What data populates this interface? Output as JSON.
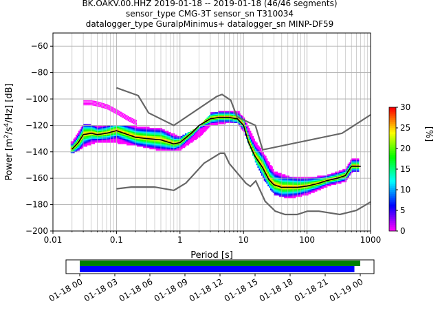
{
  "title": {
    "line1": "BK.OAKV.00.HHZ   2019-01-18 -- 2019-01-18  (46/46 segments)",
    "line2": "sensor_type CMG-3T sensor_sn T310034",
    "line3": "datalogger_type GuralpMinimus+ datalogger_sn MINP-DF59"
  },
  "chart_data": [
    {
      "type": "heatmap",
      "title": "BK.OAKV.00.HHZ   2019-01-18 -- 2019-01-18  (46/46 segments)",
      "xlabel": "Period [s]",
      "ylabel": "Power [m²/s⁴/Hz] [dB]",
      "xscale": "log",
      "xlim": [
        0.01,
        1000
      ],
      "ylim": [
        -200,
        -50
      ],
      "xticks": [
        0.01,
        0.1,
        1,
        10,
        100,
        1000
      ],
      "xtick_labels": [
        "0.01",
        "0.1",
        "1",
        "10",
        "100",
        "1000"
      ],
      "yticks": [
        -200,
        -180,
        -160,
        -140,
        -120,
        -100,
        -80,
        -60
      ],
      "ytick_labels": [
        "−200",
        "−180",
        "−160",
        "−140",
        "−120",
        "−100",
        "−80",
        "−60"
      ],
      "grid": true,
      "colorbar": {
        "label": "[%]",
        "range": [
          0,
          30
        ],
        "ticks": [
          0,
          5,
          10,
          15,
          20,
          25,
          30
        ],
        "colors": [
          "#ffffff",
          "#ff00ff",
          "#0000ff",
          "#00ffff",
          "#00ff00",
          "#ffff00",
          "#ff0000"
        ]
      },
      "series": [
        {
          "kind": "mode-line",
          "color": "#000000",
          "x": [
            0.02,
            0.025,
            0.03,
            0.04,
            0.05,
            0.07,
            0.1,
            0.15,
            0.2,
            0.3,
            0.5,
            0.8,
            1,
            1.5,
            2,
            3,
            4,
            5,
            6,
            8,
            10,
            12,
            15,
            20,
            25,
            30,
            40,
            50,
            70,
            100,
            150,
            200,
            300,
            400,
            500,
            700
          ],
          "y": [
            -138,
            -133,
            -127,
            -126,
            -127,
            -126,
            -124,
            -127,
            -129,
            -130,
            -131,
            -134,
            -133,
            -126,
            -120,
            -115,
            -114,
            -114,
            -114,
            -115,
            -120,
            -133,
            -143,
            -152,
            -161,
            -165,
            -167,
            -167,
            -167,
            -166,
            -164,
            -162,
            -160,
            -158,
            -151,
            -151
          ]
        },
        {
          "kind": "new-high-noise-model",
          "color": "#666666",
          "x": [
            0.1,
            0.22,
            0.32,
            0.8,
            3.8,
            4.6,
            6.3,
            7.9,
            15.4,
            20,
            354.8,
            1000
          ],
          "y": [
            -91.5,
            -97.4,
            -110.5,
            -120,
            -98,
            -96.5,
            -101,
            -113.5,
            -120,
            -138.5,
            -126,
            -112
          ]
        },
        {
          "kind": "new-low-noise-model",
          "color": "#666666",
          "x": [
            0.1,
            0.17,
            0.4,
            0.8,
            1.24,
            2.4,
            4.3,
            5,
            6,
            10.9,
            12.8,
            15.6,
            21.9,
            31.6,
            45,
            70,
            101,
            154,
            328,
            600,
            1000
          ],
          "y": [
            -168,
            -166.7,
            -166.7,
            -169.2,
            -163.7,
            -148.6,
            -141.1,
            -141.1,
            -149,
            -163.8,
            -166.2,
            -162.1,
            -177.5,
            -185,
            -187.5,
            -187.5,
            -185,
            -185,
            -187.5,
            -184.4,
            -178
          ]
        },
        {
          "kind": "upper-magenta-branch",
          "color": "#ff00ff",
          "x": [
            0.03,
            0.04,
            0.05,
            0.07,
            0.1,
            0.15,
            0.2
          ],
          "y": [
            -103,
            -103,
            -104,
            -106,
            -110,
            -115,
            -118
          ]
        },
        {
          "kind": "upper-density-edge",
          "color": "#00ffff",
          "x": [
            0.02,
            0.03,
            0.05,
            0.1,
            0.2,
            0.5,
            1,
            2,
            3,
            5,
            8,
            10,
            15,
            20,
            30,
            50,
            100,
            200,
            400,
            500,
            700
          ],
          "y": [
            -133,
            -120,
            -122,
            -121,
            -122,
            -124,
            -130,
            -122,
            -112,
            -110,
            -110,
            -116,
            -133,
            -142,
            -156,
            -160,
            -161,
            -159,
            -154,
            -146,
            -146
          ]
        },
        {
          "kind": "lower-density-edge",
          "color": "#0000ff",
          "x": [
            0.02,
            0.03,
            0.05,
            0.1,
            0.2,
            0.5,
            1,
            2,
            3,
            5,
            8,
            10,
            15,
            20,
            30,
            50,
            100,
            200,
            400,
            500,
            700
          ],
          "y": [
            -141,
            -136,
            -132,
            -133,
            -135,
            -139,
            -138,
            -128,
            -120,
            -118,
            -118,
            -125,
            -147,
            -160,
            -172,
            -175,
            -172,
            -166,
            -162,
            -155,
            -155
          ]
        }
      ]
    },
    {
      "type": "timeline",
      "xtick_labels": [
        "01-18 00",
        "01-18 03",
        "01-18 06",
        "01-18 09",
        "01-18 12",
        "01-18 15",
        "01-18 18",
        "01-18 21",
        "01-19 00"
      ],
      "bars": [
        {
          "name": "data-coverage",
          "color": "#008000",
          "start_hours": 0,
          "end_hours": 24
        },
        {
          "name": "psd-coverage",
          "color": "#0000ff",
          "start_hours": 0,
          "end_hours": 23.5
        }
      ]
    }
  ]
}
